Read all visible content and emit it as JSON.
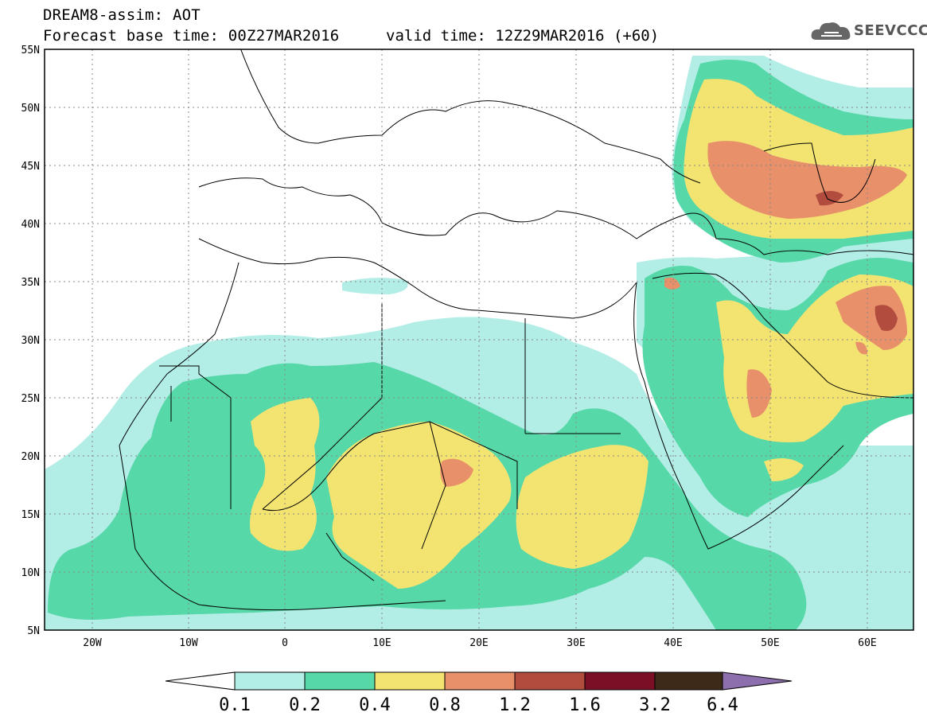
{
  "header": {
    "title": "DREAM8-assim: AOT",
    "base_time": "Forecast base time: 00Z27MAR2016",
    "valid_time": "valid time: 12Z29MAR2016 (+60)"
  },
  "logo": {
    "text": "SEEVCCC",
    "icon": "cloud-icon"
  },
  "map": {
    "lon_range": [
      -25,
      65
    ],
    "lat_range": [
      5,
      55
    ],
    "lat_ticks": [
      "55N",
      "50N",
      "45N",
      "40N",
      "35N",
      "30N",
      "25N",
      "20N",
      "15N",
      "10N",
      "5N"
    ],
    "lon_ticks": [
      "20W",
      "10W",
      "0",
      "10E",
      "20E",
      "30E",
      "40E",
      "50E",
      "60E"
    ]
  },
  "colorbar": {
    "labels": [
      "0.1",
      "0.2",
      "0.4",
      "0.8",
      "1.2",
      "1.6",
      "3.2",
      "6.4"
    ],
    "colors": [
      "#b2ede6",
      "#56d8a8",
      "#f3e472",
      "#e8906a",
      "#b24c3e",
      "#7a0f25",
      "#3e2a18",
      "#8e6fad"
    ]
  }
}
